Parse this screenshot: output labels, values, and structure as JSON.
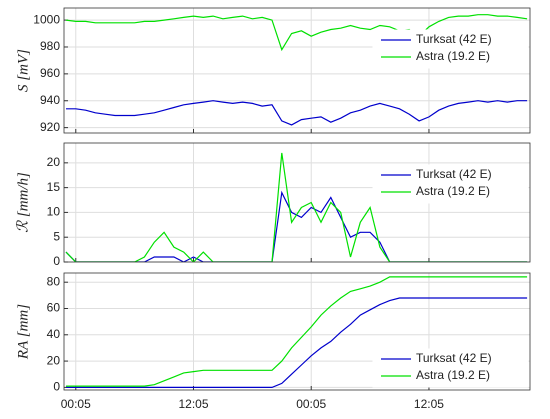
{
  "chart_data": [
    {
      "type": "line",
      "ylabel": "S [mV]",
      "legend": "upper right",
      "grid": true,
      "x": [
        -1,
        0,
        1,
        2,
        3,
        4,
        5,
        6,
        7,
        8,
        9,
        10,
        11,
        12,
        13,
        14,
        15,
        16,
        17,
        18,
        19,
        20,
        21,
        22,
        23,
        24,
        25,
        26,
        27,
        28,
        29,
        30,
        31,
        32,
        33,
        34,
        35,
        36,
        37,
        38,
        39,
        40,
        41,
        42,
        43,
        44,
        45,
        46
      ],
      "xlim": [
        -1.2,
        46.3
      ],
      "xticks": [
        0,
        12,
        24,
        36
      ],
      "ylim": [
        916,
        1009
      ],
      "yticks": [
        920,
        940,
        960,
        980,
        1000
      ],
      "series": [
        {
          "name": "Turksat (42 E)",
          "color": "#0000cc",
          "values": [
            934,
            934,
            933,
            931,
            930,
            929,
            929,
            929,
            930,
            931,
            933,
            935,
            937,
            938,
            939,
            940,
            939,
            938,
            939,
            938,
            936,
            937,
            925,
            922,
            926,
            927,
            928,
            924,
            927,
            931,
            933,
            936,
            938,
            936,
            934,
            930,
            925,
            928,
            933,
            936,
            938,
            939,
            940,
            939,
            940,
            939,
            940,
            940
          ]
        },
        {
          "name": "Astra (19.2 E)",
          "color": "#00e000",
          "values": [
            1000,
            999,
            999,
            998,
            998,
            998,
            998,
            998,
            999,
            999,
            1000,
            1001,
            1002,
            1003,
            1002,
            1003,
            1001,
            1002,
            1003,
            1001,
            1002,
            1000,
            978,
            990,
            992,
            988,
            991,
            993,
            994,
            996,
            994,
            993,
            996,
            995,
            992,
            993,
            988,
            995,
            999,
            1002,
            1003,
            1003,
            1004,
            1004,
            1003,
            1003,
            1002,
            1001
          ]
        }
      ]
    },
    {
      "type": "line",
      "ylabel": "ℛ [mm/h]",
      "legend": "upper right",
      "grid": true,
      "x": [
        -1,
        0,
        1,
        2,
        3,
        4,
        5,
        6,
        7,
        8,
        9,
        10,
        11,
        12,
        13,
        14,
        15,
        16,
        17,
        18,
        19,
        20,
        21,
        22,
        23,
        24,
        25,
        26,
        27,
        28,
        29,
        30,
        31,
        32,
        33,
        34,
        35,
        36,
        37,
        38,
        39,
        40,
        41,
        42,
        43,
        44,
        45,
        46
      ],
      "xlim": [
        -1.2,
        46.3
      ],
      "xticks": [
        0,
        12,
        24,
        36
      ],
      "ylim": [
        0,
        24
      ],
      "yticks": [
        0,
        5,
        10,
        15,
        20
      ],
      "series": [
        {
          "name": "Turksat (42 E)",
          "color": "#0000cc",
          "values": [
            2,
            0,
            0,
            0,
            0,
            0,
            0,
            0,
            0,
            1,
            1,
            1,
            0,
            1,
            0,
            0,
            0,
            0,
            0,
            0,
            0,
            0,
            14,
            10,
            9,
            11,
            10,
            13,
            9,
            5,
            6,
            6,
            4,
            0,
            0,
            0,
            0,
            0,
            0,
            0,
            0,
            0,
            0,
            0,
            0,
            0,
            0,
            0
          ]
        },
        {
          "name": "Astra (19.2 E)",
          "color": "#00e000",
          "values": [
            2,
            0,
            0,
            0,
            0,
            0,
            0,
            0,
            1,
            4,
            6,
            3,
            2,
            0,
            2,
            0,
            0,
            0,
            0,
            0,
            0,
            0,
            22,
            8,
            11,
            12,
            8,
            12,
            10,
            1,
            8,
            11,
            3,
            0,
            0,
            0,
            0,
            0,
            0,
            0,
            0,
            0,
            0,
            0,
            0,
            0,
            0,
            0
          ]
        }
      ]
    },
    {
      "type": "line",
      "ylabel": "RA [mm]",
      "legend": "lower right",
      "grid": true,
      "x": [
        -1,
        0,
        1,
        2,
        3,
        4,
        5,
        6,
        7,
        8,
        9,
        10,
        11,
        12,
        13,
        14,
        15,
        16,
        17,
        18,
        19,
        20,
        21,
        22,
        23,
        24,
        25,
        26,
        27,
        28,
        29,
        30,
        31,
        32,
        33,
        34,
        35,
        36,
        37,
        38,
        39,
        40,
        41,
        42,
        43,
        44,
        45,
        46
      ],
      "xlim": [
        -1.2,
        46.3
      ],
      "xticks": [
        {
          "value": 0,
          "label": "00:05"
        },
        {
          "value": 12,
          "label": "12:05"
        },
        {
          "value": 24,
          "label": "00:05"
        },
        {
          "value": 36,
          "label": "12:05"
        }
      ],
      "ylim": [
        -2,
        87
      ],
      "yticks": [
        0,
        20,
        40,
        60,
        80
      ],
      "series": [
        {
          "name": "Turksat (42 E)",
          "color": "#0000cc",
          "values": [
            0,
            0,
            0,
            0,
            0,
            0,
            0,
            0,
            0,
            0,
            0,
            0,
            0,
            0,
            0,
            0,
            0,
            0,
            0,
            0,
            0,
            0,
            3,
            10,
            17,
            24,
            30,
            35,
            42,
            48,
            55,
            59,
            63,
            66,
            68,
            68,
            68,
            68,
            68,
            68,
            68,
            68,
            68,
            68,
            68,
            68,
            68,
            68
          ]
        },
        {
          "name": "Astra (19.2 E)",
          "color": "#00e000",
          "values": [
            1,
            1,
            1,
            1,
            1,
            1,
            1,
            1,
            1,
            2,
            5,
            8,
            11,
            12,
            13,
            13,
            13,
            13,
            13,
            13,
            13,
            13,
            20,
            30,
            38,
            46,
            55,
            62,
            68,
            73,
            75,
            77,
            80,
            84,
            84,
            84,
            84,
            84,
            84,
            84,
            84,
            84,
            84,
            84,
            84,
            84,
            84,
            84
          ]
        }
      ]
    }
  ]
}
